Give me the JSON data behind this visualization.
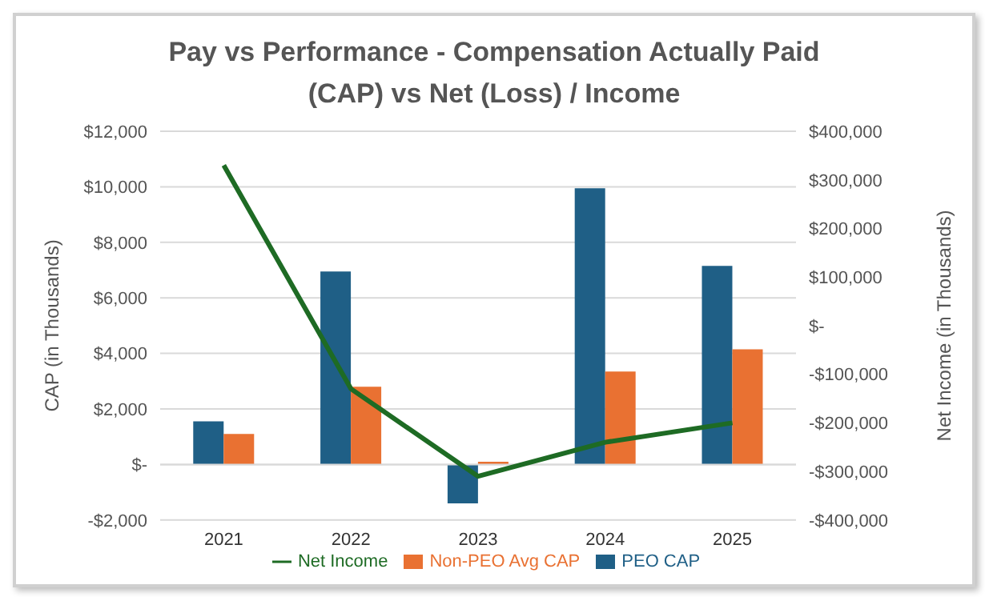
{
  "chart_data": {
    "type": "bar",
    "title": "Pay vs Performance - Compensation Actually Paid (CAP) vs Net (Loss) / Income",
    "ylabel": "CAP (in Thousands)",
    "y2label": "Net Income (in Thousands)",
    "categories": [
      "2021",
      "2022",
      "2023",
      "2024",
      "2025"
    ],
    "series": [
      {
        "name": "PEO CAP",
        "color": "#1f5f86",
        "values": [
          1550,
          6950,
          -1400,
          9950,
          7150
        ]
      },
      {
        "name": "Non-PEO Avg CAP",
        "color": "#e97132",
        "values": [
          1100,
          2800,
          100,
          3350,
          4150
        ]
      },
      {
        "name": "Net Income",
        "type": "line",
        "axis": "y2",
        "color": "#1e6b24",
        "values": [
          330000,
          -130000,
          -310000,
          -240000,
          -200000
        ]
      }
    ],
    "ylim": [
      -2000,
      12000
    ],
    "yticks": [
      {
        "value": -2000,
        "label": "-$2,000"
      },
      {
        "value": 0,
        "label": "$-"
      },
      {
        "value": 2000,
        "label": "$2,000"
      },
      {
        "value": 4000,
        "label": "$4,000"
      },
      {
        "value": 6000,
        "label": "$6,000"
      },
      {
        "value": 8000,
        "label": "$8,000"
      },
      {
        "value": 10000,
        "label": "$10,000"
      },
      {
        "value": 12000,
        "label": "$12,000"
      }
    ],
    "y2lim": [
      -400000,
      400000
    ],
    "y2ticks": [
      {
        "value": -400000,
        "label": "-$400,000"
      },
      {
        "value": -300000,
        "label": "-$300,000"
      },
      {
        "value": -200000,
        "label": "-$200,000"
      },
      {
        "value": -100000,
        "label": "-$100,000"
      },
      {
        "value": 0,
        "label": "$-"
      },
      {
        "value": 100000,
        "label": "$100,000"
      },
      {
        "value": 200000,
        "label": "$200,000"
      },
      {
        "value": 300000,
        "label": "$300,000"
      },
      {
        "value": 400000,
        "label": "$400,000"
      }
    ],
    "grid": "y",
    "legend": "bottom",
    "marker": "none"
  }
}
